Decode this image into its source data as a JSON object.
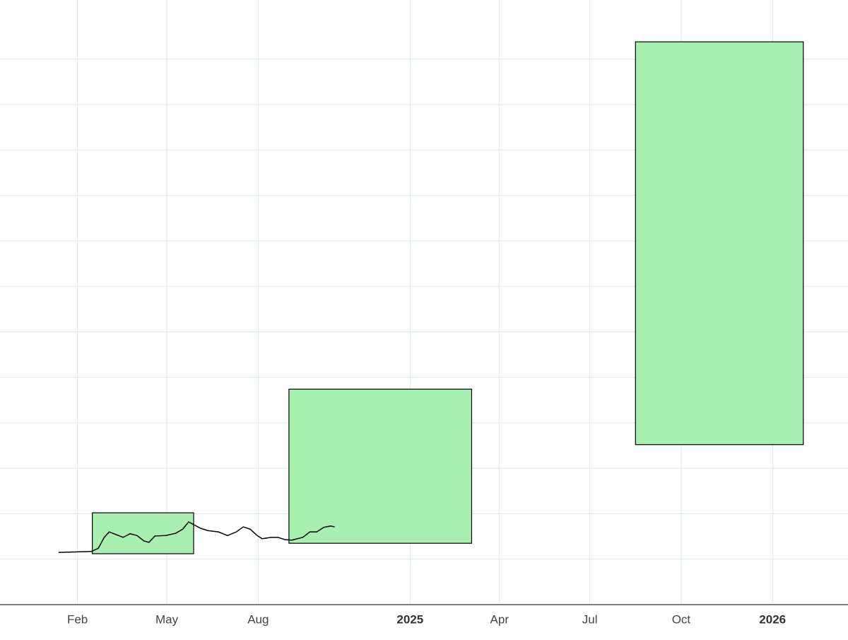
{
  "chart_data": {
    "type": "line",
    "xlim": [
      "2023-11-15",
      "2026-03-18"
    ],
    "xticks": [
      {
        "value": "2024-02",
        "label": "Feb"
      },
      {
        "value": "2024-05",
        "label": "May"
      },
      {
        "value": "2024-08",
        "label": "Aug"
      },
      {
        "value": "2025-01",
        "label": "2025"
      },
      {
        "value": "2025-04",
        "label": "Apr"
      },
      {
        "value": "2025-07",
        "label": "Jul"
      },
      {
        "value": "2025-10",
        "label": "Oct"
      },
      {
        "value": "2026-01",
        "label": "2026"
      }
    ],
    "ylim": [
      0,
      13.3
    ],
    "yticks": [
      1,
      2,
      3,
      4,
      5,
      6,
      7,
      8,
      9,
      10,
      11,
      12
    ],
    "grid": true,
    "x": [
      "2024-01-13",
      "2024-02-15",
      "2024-02-22",
      "2024-02-28",
      "2024-03-04",
      "2024-03-11",
      "2024-03-18",
      "2024-03-25",
      "2024-04-01",
      "2024-04-08",
      "2024-04-13",
      "2024-04-19",
      "2024-04-30",
      "2024-05-10",
      "2024-05-17",
      "2024-05-23",
      "2024-05-28",
      "2024-06-04",
      "2024-06-11",
      "2024-06-22",
      "2024-07-01",
      "2024-07-10",
      "2024-07-17",
      "2024-07-24",
      "2024-07-31",
      "2024-08-05",
      "2024-08-14",
      "2024-08-21",
      "2024-08-28",
      "2024-09-04",
      "2024-09-15",
      "2024-09-22",
      "2024-09-29",
      "2024-10-06",
      "2024-10-13",
      "2024-10-17"
    ],
    "series": [
      {
        "color": "#000000",
        "values": [
          1.15,
          1.17,
          1.24,
          1.48,
          1.6,
          1.54,
          1.48,
          1.56,
          1.52,
          1.4,
          1.37,
          1.51,
          1.52,
          1.57,
          1.66,
          1.82,
          1.76,
          1.68,
          1.63,
          1.6,
          1.52,
          1.6,
          1.71,
          1.66,
          1.52,
          1.45,
          1.48,
          1.48,
          1.43,
          1.42,
          1.48,
          1.6,
          1.6,
          1.7,
          1.73,
          1.71
        ]
      }
    ],
    "boxes": [
      {
        "x": [
          "2024-02-16",
          "2024-05-28"
        ],
        "y": [
          1.12,
          2.02
        ]
      },
      {
        "x": [
          "2024-09-01",
          "2025-03-04"
        ],
        "y": [
          1.35,
          4.74
        ]
      },
      {
        "x": [
          "2025-08-16",
          "2026-02-01"
        ],
        "y": [
          3.52,
          12.38
        ]
      }
    ],
    "box_color": "#a8f0b0"
  }
}
